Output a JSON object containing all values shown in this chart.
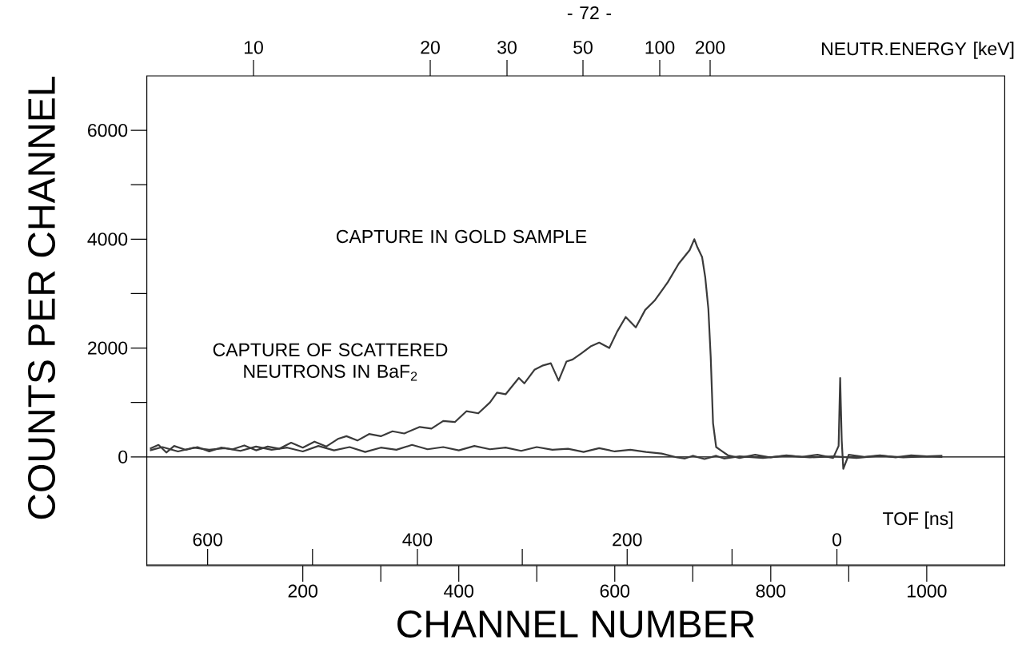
{
  "chart_data": {
    "type": "line",
    "xlabel": "CHANNEL NUMBER",
    "ylabel": "COUNTS PER CHANNEL",
    "x2label": "TOF [ns]",
    "annotations": [
      "- 72 -",
      "10",
      "20",
      "30",
      "50",
      "100",
      "200",
      "NEUTR.ENERGY [keV]",
      "CAPTURE IN GOLD SAMPLE",
      "CAPTURE OF SCATTERED NEUTRONS IN BaF$_{2}$"
    ],
    "xlim": [
      0,
      1100
    ],
    "xticks": [
      200,
      400,
      600,
      800,
      1000
    ],
    "ylim": [
      -2000,
      7000
    ],
    "yticks": [
      0,
      2000,
      4000,
      6000
    ],
    "x2lim": [
      658,
      -160
    ],
    "x2ticks": [
      600,
      400,
      200,
      0
    ],
    "ref_lines": [
      {
        "axis": "y",
        "value": 0,
        "color": "#000000"
      }
    ],
    "line_style": "solid",
    "series": [
      {
        "color": "#3a3a3a",
        "x": [
          4,
          15,
          25,
          35,
          50,
          65,
          80,
          95,
          110,
          125,
          140,
          155,
          170,
          185,
          200,
          215,
          230,
          245,
          256,
          270,
          285,
          300,
          315,
          330,
          350,
          365,
          380,
          395,
          410,
          425,
          440,
          449,
          460,
          477,
          484,
          497,
          508,
          518,
          528,
          538,
          546,
          557,
          569,
          580,
          593,
          603,
          614,
          627,
          639,
          651,
          660,
          668,
          682,
          696,
          702,
          706,
          712,
          716,
          720,
          723,
          726,
          730,
          736,
          745,
          760,
          780,
          800,
          820,
          840,
          860,
          880,
          887,
          889,
          891,
          893,
          900,
          920,
          940,
          960,
          980,
          1000,
          1020
        ],
        "values": [
          150,
          220,
          80,
          200,
          130,
          180,
          100,
          170,
          140,
          210,
          120,
          190,
          150,
          260,
          170,
          280,
          190,
          330,
          380,
          300,
          420,
          380,
          470,
          430,
          550,
          520,
          660,
          640,
          840,
          800,
          1000,
          1180,
          1150,
          1450,
          1350,
          1600,
          1680,
          1720,
          1400,
          1750,
          1790,
          1900,
          2030,
          2100,
          2000,
          2300,
          2570,
          2380,
          2700,
          2870,
          3050,
          3210,
          3550,
          3800,
          4000,
          3850,
          3670,
          3300,
          2720,
          1840,
          620,
          180,
          120,
          30,
          -20,
          40,
          -10,
          30,
          0,
          40,
          -20,
          200,
          1450,
          300,
          -220,
          40,
          0,
          30,
          -10,
          30,
          10,
          20
        ]
      },
      {
        "color": "#3a3a3a",
        "x": [
          4,
          20,
          40,
          60,
          80,
          100,
          120,
          140,
          160,
          180,
          200,
          220,
          240,
          260,
          280,
          300,
          320,
          340,
          360,
          380,
          400,
          420,
          440,
          460,
          480,
          500,
          520,
          540,
          560,
          580,
          600,
          620,
          640,
          660,
          680,
          690,
          700,
          715,
          730,
          740,
          760,
          790,
          820,
          850,
          880,
          910,
          940,
          970,
          1000,
          1020
        ],
        "values": [
          120,
          180,
          100,
          170,
          130,
          160,
          110,
          190,
          130,
          170,
          100,
          200,
          120,
          180,
          90,
          170,
          130,
          220,
          140,
          180,
          120,
          200,
          140,
          170,
          110,
          180,
          130,
          150,
          90,
          160,
          100,
          130,
          90,
          60,
          -10,
          -30,
          20,
          -40,
          20,
          -30,
          10,
          -20,
          20,
          -10,
          10,
          -20,
          20,
          -10,
          10,
          0
        ]
      }
    ]
  }
}
